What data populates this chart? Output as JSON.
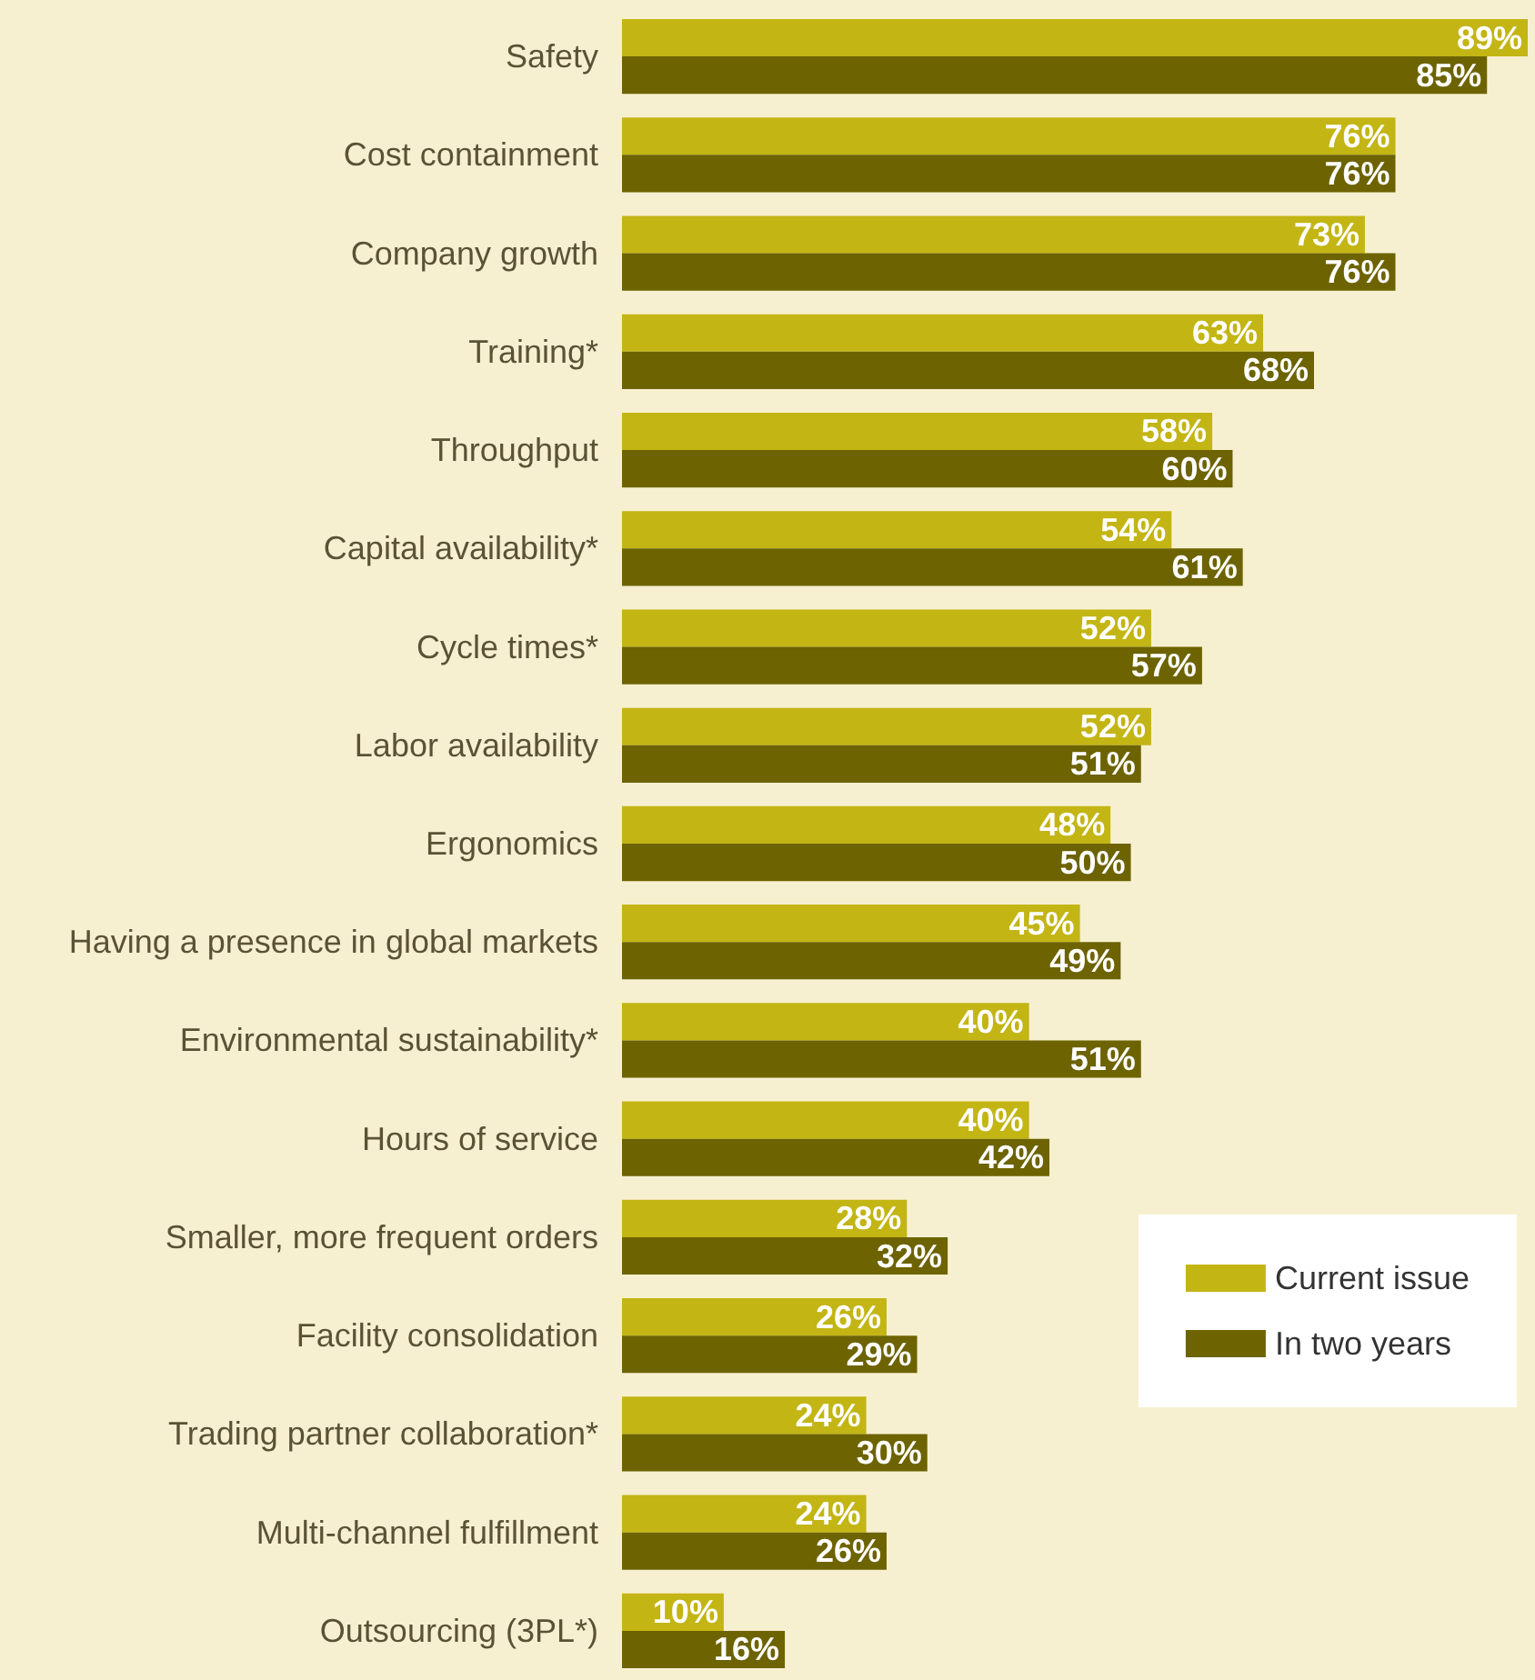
{
  "chart_data": {
    "type": "bar",
    "orientation": "horizontal",
    "categories": [
      "Safety",
      "Cost containment",
      "Company growth",
      "Training*",
      "Throughput",
      "Capital availability*",
      "Cycle times*",
      "Labor availability",
      "Ergonomics",
      "Having a presence in global markets",
      "Environmental sustainability*",
      "Hours of service",
      "Smaller, more frequent orders",
      "Facility consolidation",
      "Trading partner collaboration*",
      "Multi-channel fulfillment",
      "Outsourcing (3PL*)"
    ],
    "series": [
      {
        "name": "Current issue",
        "color": "#c3b514",
        "values": [
          89,
          76,
          73,
          63,
          58,
          54,
          52,
          52,
          48,
          45,
          40,
          40,
          28,
          26,
          24,
          24,
          10
        ],
        "value_labels": [
          "89%",
          "76%",
          "73%",
          "63%",
          "58%",
          "54%",
          "52%",
          "52%",
          "48%",
          "45%",
          "40%",
          "40%",
          "28%",
          "26%",
          "24%",
          "24%",
          "10%"
        ]
      },
      {
        "name": "In two years",
        "color": "#6d6300",
        "values": [
          85,
          76,
          76,
          68,
          60,
          61,
          57,
          51,
          50,
          49,
          51,
          42,
          32,
          29,
          30,
          26,
          16
        ],
        "value_labels": [
          "85%",
          "76%",
          "76%",
          "68%",
          "60%",
          "61%",
          "57%",
          "51%",
          "50%",
          "49%",
          "51%",
          "42%",
          "32%",
          "29%",
          "30%",
          "26%",
          "16%"
        ]
      }
    ],
    "legend": "bottom right"
  }
}
